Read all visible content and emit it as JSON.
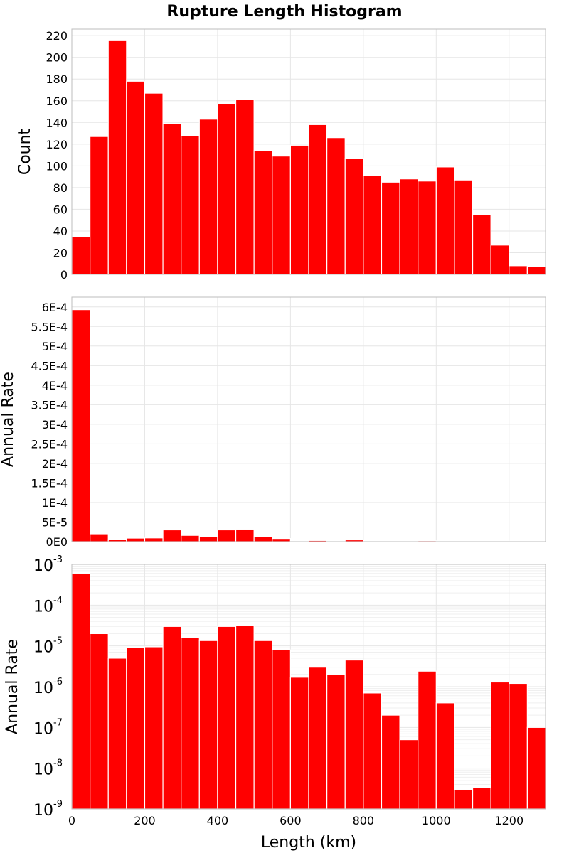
{
  "chart_data": [
    {
      "type": "bar",
      "title": "Rupture Length Histogram",
      "ylabel": "Count",
      "xlabel": "",
      "xlim": [
        0,
        1300
      ],
      "ylim": [
        0,
        226
      ],
      "bin_width": 50,
      "bin_centers": [
        25,
        75,
        125,
        175,
        225,
        275,
        325,
        375,
        425,
        475,
        525,
        575,
        625,
        675,
        725,
        775,
        825,
        875,
        925,
        975,
        1025,
        1075,
        1125,
        1175,
        1225,
        1275
      ],
      "values": [
        35,
        127,
        216,
        178,
        167,
        139,
        128,
        143,
        157,
        161,
        114,
        109,
        119,
        138,
        126,
        107,
        91,
        85,
        88,
        86,
        99,
        87,
        55,
        27,
        8,
        7
      ],
      "yticks": [
        0,
        20,
        40,
        60,
        80,
        100,
        120,
        140,
        160,
        180,
        200,
        220
      ],
      "ytick_labels": [
        "0",
        "20",
        "40",
        "60",
        "80",
        "100",
        "120",
        "140",
        "160",
        "180",
        "200",
        "220"
      ],
      "xticks": [
        0,
        200,
        400,
        600,
        800,
        1000,
        1200
      ],
      "grid": true,
      "bar_color": "#ff0000"
    },
    {
      "type": "bar",
      "ylabel": "Annual Rate",
      "xlabel": "",
      "xlim": [
        0,
        1300
      ],
      "ylim": [
        0,
        0.000625
      ],
      "bin_width": 50,
      "bin_centers": [
        25,
        75,
        125,
        175,
        225,
        275,
        325,
        375,
        425,
        475,
        525,
        575,
        625,
        675,
        725,
        775,
        825,
        875,
        925,
        975,
        1025,
        1075,
        1125,
        1175,
        1225,
        1275
      ],
      "values": [
        0.000593,
        2e-05,
        5e-06,
        9e-06,
        9.5e-06,
        3e-05,
        1.6e-05,
        1.35e-05,
        3e-05,
        3.2e-05,
        1.35e-05,
        8e-06,
        1.7e-06,
        3e-06,
        2e-06,
        4.5e-06,
        7e-07,
        2e-07,
        5e-08,
        2.4e-06,
        4e-07,
        3e-09,
        3.4e-09,
        1.3e-06,
        1.2e-06,
        1e-07
      ],
      "yticks": [
        0,
        5e-05,
        0.0001,
        0.00015,
        0.0002,
        0.00025,
        0.0003,
        0.00035,
        0.0004,
        0.00045,
        0.0005,
        0.00055,
        0.0006
      ],
      "ytick_labels": [
        "0E0",
        "5E-5",
        "1E-4",
        "1.5E-4",
        "2E-4",
        "2.5E-4",
        "3E-4",
        "3.5E-4",
        "4E-4",
        "4.5E-4",
        "5E-4",
        "5.5E-4",
        "6E-4"
      ],
      "xticks": [
        0,
        200,
        400,
        600,
        800,
        1000,
        1200
      ],
      "grid": true,
      "bar_color": "#ff0000"
    },
    {
      "type": "bar",
      "yscale": "log",
      "ylabel": "Annual Rate",
      "xlabel": "Length (km)",
      "xlim": [
        0,
        1300
      ],
      "ylim": [
        1e-09,
        0.001
      ],
      "bin_width": 50,
      "bin_centers": [
        25,
        75,
        125,
        175,
        225,
        275,
        325,
        375,
        425,
        475,
        525,
        575,
        625,
        675,
        725,
        775,
        825,
        875,
        925,
        975,
        1025,
        1075,
        1125,
        1175,
        1225,
        1275
      ],
      "values": [
        0.000593,
        2e-05,
        5e-06,
        9e-06,
        9.5e-06,
        3e-05,
        1.6e-05,
        1.35e-05,
        3e-05,
        3.2e-05,
        1.35e-05,
        8e-06,
        1.7e-06,
        3e-06,
        2e-06,
        4.5e-06,
        7e-07,
        2e-07,
        5e-08,
        2.4e-06,
        4e-07,
        3e-09,
        3.4e-09,
        1.3e-06,
        1.2e-06,
        1e-07
      ],
      "yticks": [
        1e-09,
        1e-08,
        1e-07,
        1e-06,
        1e-05,
        0.0001,
        0.001
      ],
      "ytick_exponents": [
        "-9",
        "-8",
        "-7",
        "-6",
        "-5",
        "-4",
        "-3"
      ],
      "ytick_base": "10",
      "xticks": [
        0,
        200,
        400,
        600,
        800,
        1000,
        1200
      ],
      "xtick_labels": [
        "0",
        "200",
        "400",
        "600",
        "800",
        "1000",
        "1200"
      ],
      "grid": true,
      "bar_color": "#ff0000"
    }
  ]
}
